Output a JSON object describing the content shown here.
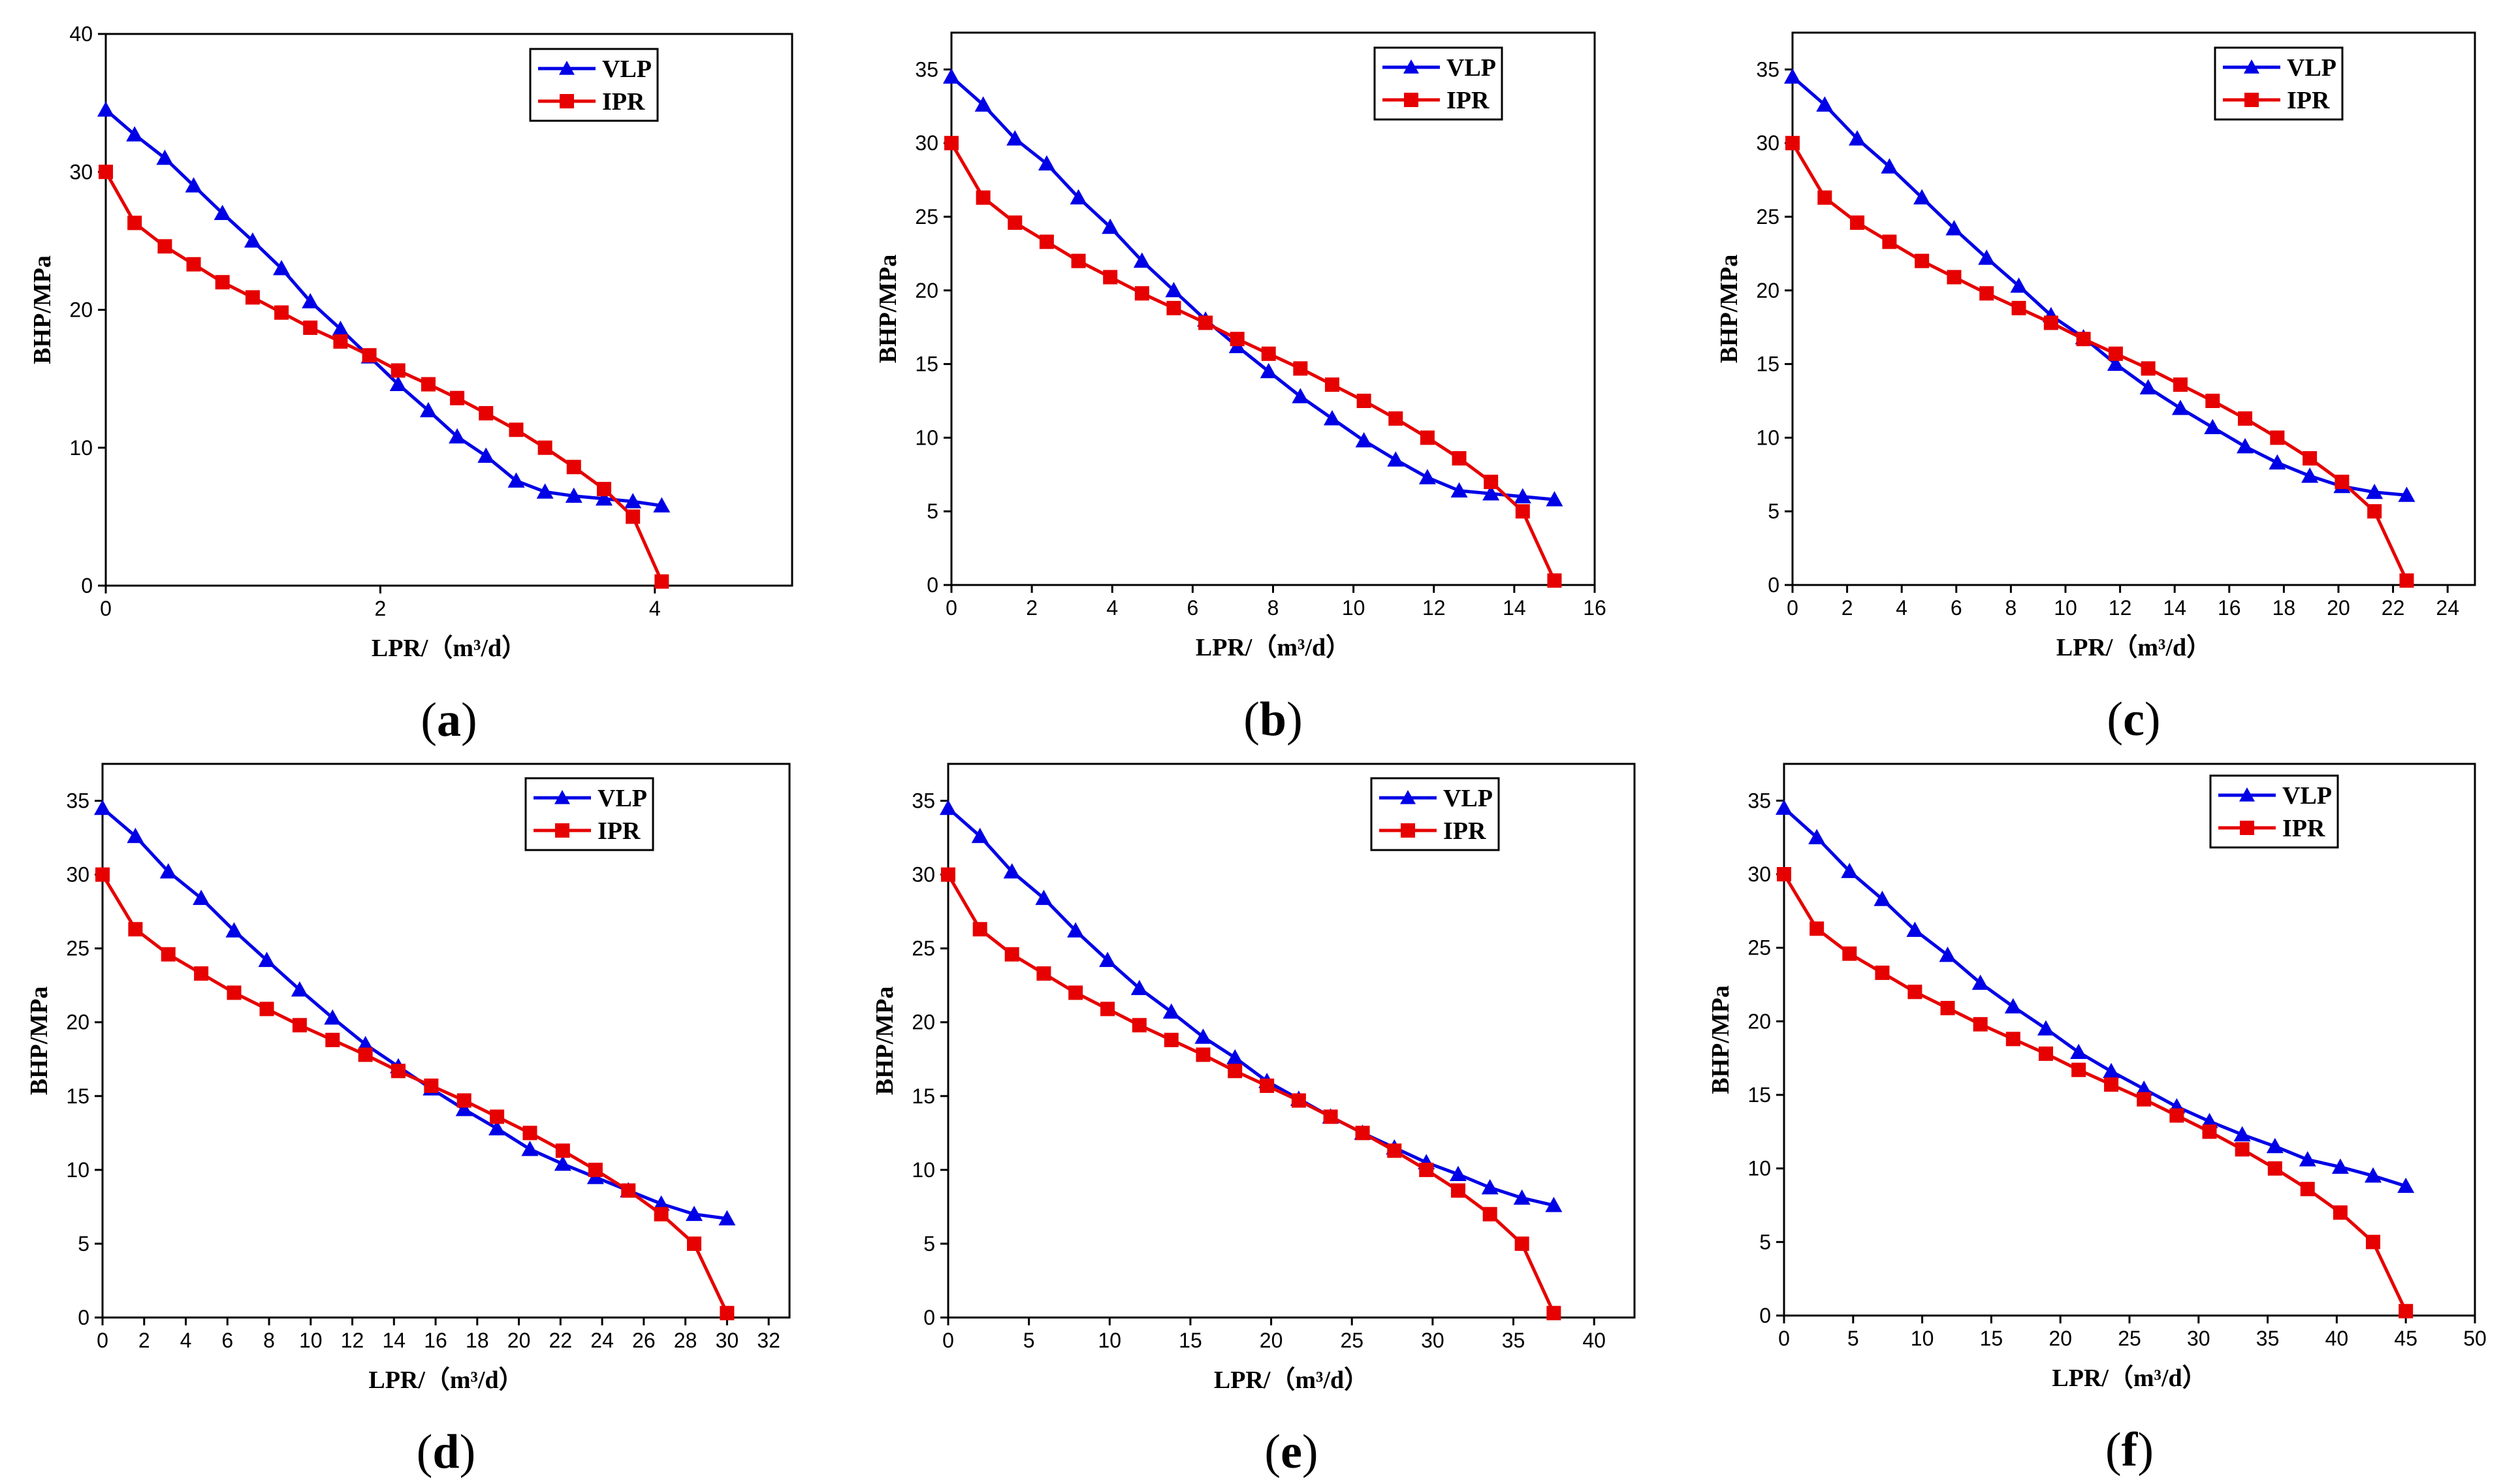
{
  "legend": {
    "vlp": "VLP",
    "ipr": "IPR"
  },
  "colors": {
    "vlp": "#0000e6",
    "ipr": "#e60000"
  },
  "chart_data": [
    {
      "panel": "a",
      "type": "line",
      "xlabel": "LPR/（m³/d）",
      "ylabel": "BHP/MPa",
      "xlim": [
        0,
        5
      ],
      "ylim": [
        0,
        40
      ],
      "xticks": [
        0,
        2,
        4
      ],
      "yticks": [
        0,
        10,
        20,
        30,
        40
      ],
      "series": [
        {
          "name": "VLP",
          "marker": "triangle",
          "x": [
            0,
            0.21,
            0.43,
            0.64,
            0.85,
            1.07,
            1.28,
            1.49,
            1.71,
            1.92,
            2.13,
            2.35,
            2.56,
            2.77,
            2.99,
            3.2,
            3.41,
            3.63,
            3.84,
            4.05
          ],
          "y": [
            34.5,
            32.7,
            31.0,
            29.0,
            27.0,
            25.0,
            23.0,
            20.6,
            18.6,
            16.6,
            14.6,
            12.7,
            10.8,
            9.4,
            7.6,
            6.8,
            6.5,
            6.3,
            6.1,
            5.8
          ]
        },
        {
          "name": "IPR",
          "marker": "square",
          "x": [
            0,
            0.21,
            0.43,
            0.64,
            0.85,
            1.07,
            1.28,
            1.49,
            1.71,
            1.92,
            2.13,
            2.35,
            2.56,
            2.77,
            2.99,
            3.2,
            3.41,
            3.63,
            3.84,
            4.05
          ],
          "y": [
            30,
            26.3,
            24.6,
            23.3,
            22.0,
            20.9,
            19.8,
            18.7,
            17.7,
            16.7,
            15.6,
            14.6,
            13.6,
            12.5,
            11.3,
            10.0,
            8.6,
            7.0,
            5.0,
            0.3
          ]
        }
      ]
    },
    {
      "panel": "b",
      "type": "line",
      "xlabel": "LPR/（m³/d）",
      "ylabel": "BHP/MPa",
      "xlim": [
        0,
        16
      ],
      "ylim": [
        0,
        37.5
      ],
      "xticks": [
        0,
        2,
        4,
        6,
        8,
        10,
        12,
        14,
        16
      ],
      "yticks": [
        0,
        5,
        10,
        15,
        20,
        25,
        30,
        35
      ],
      "series": [
        {
          "name": "VLP",
          "marker": "triangle",
          "x": [
            0,
            0.79,
            1.58,
            2.37,
            3.16,
            3.95,
            4.74,
            5.53,
            6.32,
            7.11,
            7.89,
            8.68,
            9.47,
            10.26,
            11.05,
            11.84,
            12.63,
            13.42,
            14.21,
            15
          ],
          "y": [
            34.5,
            32.6,
            30.3,
            28.6,
            26.3,
            24.3,
            22.0,
            20.0,
            18.0,
            16.2,
            14.5,
            12.8,
            11.3,
            9.8,
            8.5,
            7.3,
            6.4,
            6.2,
            6.0,
            5.8
          ]
        },
        {
          "name": "IPR",
          "marker": "square",
          "x": [
            0,
            0.79,
            1.58,
            2.37,
            3.16,
            3.95,
            4.74,
            5.53,
            6.32,
            7.11,
            7.89,
            8.68,
            9.47,
            10.26,
            11.05,
            11.84,
            12.63,
            13.42,
            14.21,
            15
          ],
          "y": [
            30,
            26.3,
            24.6,
            23.3,
            22.0,
            20.9,
            19.8,
            18.8,
            17.8,
            16.7,
            15.7,
            14.7,
            13.6,
            12.5,
            11.3,
            10.0,
            8.6,
            7.0,
            5.0,
            0.3
          ]
        }
      ]
    },
    {
      "panel": "c",
      "type": "line",
      "xlabel": "LPR/（m³/d）",
      "ylabel": "BHP/MPa",
      "xlim": [
        0,
        25
      ],
      "ylim": [
        0,
        37.5
      ],
      "xticks": [
        0,
        2,
        4,
        6,
        8,
        10,
        12,
        14,
        16,
        18,
        20,
        22,
        24
      ],
      "yticks": [
        0,
        5,
        10,
        15,
        20,
        25,
        30,
        35
      ],
      "series": [
        {
          "name": "VLP",
          "marker": "triangle",
          "x": [
            0,
            1.18,
            2.37,
            3.55,
            4.74,
            5.92,
            7.11,
            8.29,
            9.47,
            10.66,
            11.84,
            13.03,
            14.21,
            15.39,
            16.58,
            17.76,
            18.95,
            20.13,
            21.32,
            22.5
          ],
          "y": [
            34.5,
            32.6,
            30.3,
            28.4,
            26.3,
            24.2,
            22.2,
            20.3,
            18.3,
            16.8,
            15.0,
            13.4,
            12.0,
            10.7,
            9.4,
            8.3,
            7.4,
            6.7,
            6.3,
            6.1
          ]
        },
        {
          "name": "IPR",
          "marker": "square",
          "x": [
            0,
            1.18,
            2.37,
            3.55,
            4.74,
            5.92,
            7.11,
            8.29,
            9.47,
            10.66,
            11.84,
            13.03,
            14.21,
            15.39,
            16.58,
            17.76,
            18.95,
            20.13,
            21.32,
            22.5
          ],
          "y": [
            30,
            26.3,
            24.6,
            23.3,
            22.0,
            20.9,
            19.8,
            18.8,
            17.8,
            16.7,
            15.7,
            14.7,
            13.6,
            12.5,
            11.3,
            10.0,
            8.6,
            7.0,
            5.0,
            0.3
          ]
        }
      ]
    },
    {
      "panel": "d",
      "type": "line",
      "xlabel": "LPR/（m³/d）",
      "ylabel": "BHP/MPa",
      "xlim": [
        0,
        33
      ],
      "ylim": [
        0,
        37.5
      ],
      "xticks": [
        0,
        2,
        4,
        6,
        8,
        10,
        12,
        14,
        16,
        18,
        20,
        22,
        24,
        26,
        28,
        30,
        32
      ],
      "yticks": [
        0,
        5,
        10,
        15,
        20,
        25,
        30,
        35
      ],
      "series": [
        {
          "name": "VLP",
          "marker": "triangle",
          "x": [
            0,
            1.58,
            3.16,
            4.74,
            6.32,
            7.89,
            9.47,
            11.05,
            12.63,
            14.21,
            15.79,
            17.37,
            18.95,
            20.53,
            22.11,
            23.68,
            25.26,
            26.84,
            28.42,
            30
          ],
          "y": [
            34.5,
            32.6,
            30.2,
            28.4,
            26.2,
            24.2,
            22.2,
            20.3,
            18.5,
            17.0,
            15.5,
            14.1,
            12.8,
            11.4,
            10.4,
            9.5,
            8.6,
            7.7,
            7.0,
            6.7
          ]
        },
        {
          "name": "IPR",
          "marker": "square",
          "x": [
            0,
            1.58,
            3.16,
            4.74,
            6.32,
            7.89,
            9.47,
            11.05,
            12.63,
            14.21,
            15.79,
            17.37,
            18.95,
            20.53,
            22.11,
            23.68,
            25.26,
            26.84,
            28.42,
            30
          ],
          "y": [
            30,
            26.3,
            24.6,
            23.3,
            22.0,
            20.9,
            19.8,
            18.8,
            17.8,
            16.7,
            15.7,
            14.7,
            13.6,
            12.5,
            11.3,
            10.0,
            8.6,
            7.0,
            5.0,
            0.3
          ]
        }
      ]
    },
    {
      "panel": "e",
      "type": "line",
      "xlabel": "LPR/（m³/d）",
      "ylabel": "BHP/MPa",
      "xlim": [
        0,
        42.5
      ],
      "ylim": [
        0,
        37.5
      ],
      "xticks": [
        0,
        5,
        10,
        15,
        20,
        25,
        30,
        35,
        40
      ],
      "yticks": [
        0,
        5,
        10,
        15,
        20,
        25,
        30,
        35
      ],
      "series": [
        {
          "name": "VLP",
          "marker": "triangle",
          "x": [
            0,
            1.97,
            3.95,
            5.92,
            7.89,
            9.87,
            11.84,
            13.82,
            15.79,
            17.76,
            19.74,
            21.71,
            23.68,
            25.66,
            27.63,
            29.61,
            31.58,
            33.55,
            35.53,
            37.5
          ],
          "y": [
            34.5,
            32.6,
            30.2,
            28.4,
            26.2,
            24.2,
            22.3,
            20.7,
            19.0,
            17.6,
            16.0,
            14.8,
            13.6,
            12.5,
            11.5,
            10.5,
            9.7,
            8.8,
            8.1,
            7.6
          ]
        },
        {
          "name": "IPR",
          "marker": "square",
          "x": [
            0,
            1.97,
            3.95,
            5.92,
            7.89,
            9.87,
            11.84,
            13.82,
            15.79,
            17.76,
            19.74,
            21.71,
            23.68,
            25.66,
            27.63,
            29.61,
            31.58,
            33.55,
            35.53,
            37.5
          ],
          "y": [
            30,
            26.3,
            24.6,
            23.3,
            22.0,
            20.9,
            19.8,
            18.8,
            17.8,
            16.7,
            15.7,
            14.7,
            13.6,
            12.5,
            11.3,
            10.0,
            8.6,
            7.0,
            5.0,
            0.3
          ]
        }
      ]
    },
    {
      "panel": "f",
      "type": "line",
      "xlabel": "LPR/（m³/d）",
      "ylabel": "BHP/MPa",
      "xlim": [
        0,
        50
      ],
      "ylim": [
        0,
        37.5
      ],
      "xticks": [
        0,
        5,
        10,
        15,
        20,
        25,
        30,
        35,
        40,
        45,
        50
      ],
      "yticks": [
        0,
        5,
        10,
        15,
        20,
        25,
        30,
        35
      ],
      "series": [
        {
          "name": "VLP",
          "marker": "triangle",
          "x": [
            0,
            2.37,
            4.74,
            7.11,
            9.47,
            11.84,
            14.21,
            16.58,
            18.95,
            21.32,
            23.68,
            26.05,
            28.42,
            30.79,
            33.16,
            35.53,
            37.89,
            40.26,
            42.63,
            45
          ],
          "y": [
            34.5,
            32.5,
            30.2,
            28.3,
            26.2,
            24.5,
            22.6,
            21.0,
            19.5,
            17.9,
            16.6,
            15.4,
            14.2,
            13.2,
            12.3,
            11.5,
            10.6,
            10.1,
            9.5,
            8.8
          ]
        },
        {
          "name": "IPR",
          "marker": "square",
          "x": [
            0,
            2.37,
            4.74,
            7.11,
            9.47,
            11.84,
            14.21,
            16.58,
            18.95,
            21.32,
            23.68,
            26.05,
            28.42,
            30.79,
            33.16,
            35.53,
            37.89,
            40.26,
            42.63,
            45
          ],
          "y": [
            30,
            26.3,
            24.6,
            23.3,
            22.0,
            20.9,
            19.8,
            18.8,
            17.8,
            16.7,
            15.7,
            14.7,
            13.6,
            12.5,
            11.3,
            10.0,
            8.6,
            7.0,
            5.0,
            0.3
          ]
        }
      ]
    }
  ]
}
